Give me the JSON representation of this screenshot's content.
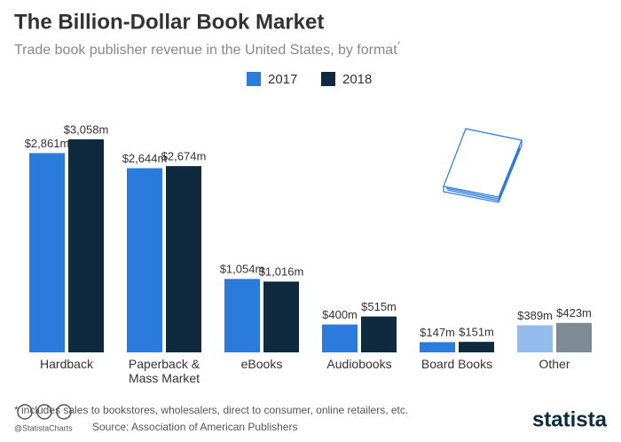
{
  "chart_data": {
    "type": "bar",
    "title": "The Billion-Dollar Book Market",
    "subtitle": "Trade book publisher revenue in the United States, by format",
    "subtitle_mark": "*",
    "categories": [
      "Hardback",
      "Paperback & Mass Market",
      "eBooks",
      "Audiobooks",
      "Board Books",
      "Other"
    ],
    "series": [
      {
        "name": "2017",
        "color": "#2b7bdd",
        "colors": [
          "#2b7bdd",
          "#2b7bdd",
          "#2b7bdd",
          "#2b7bdd",
          "#2b7bdd",
          "#93bbec"
        ],
        "values": [
          2861,
          2644,
          1054,
          400,
          147,
          389
        ],
        "value_labels": [
          "$2,861m",
          "$2,644m",
          "$1,054m",
          "$400m",
          "$147m",
          "$389m"
        ]
      },
      {
        "name": "2018",
        "color": "#0f2a3f",
        "colors": [
          "#0f2a3f",
          "#0f2a3f",
          "#0f2a3f",
          "#0f2a3f",
          "#0f2a3f",
          "#7e8b96"
        ],
        "values": [
          3058,
          2674,
          1016,
          515,
          151,
          423
        ],
        "value_labels": [
          "$3,058m",
          "$2,674m",
          "$1,016m",
          "$515m",
          "$151m",
          "$423m"
        ]
      }
    ],
    "footnote": "* includes sales to bookstores, wholesalers, direct to consumer, online retailers, etc.",
    "source": "Source: Association of American Publishers",
    "handle": "@StatistaCharts",
    "brand": "statista"
  }
}
